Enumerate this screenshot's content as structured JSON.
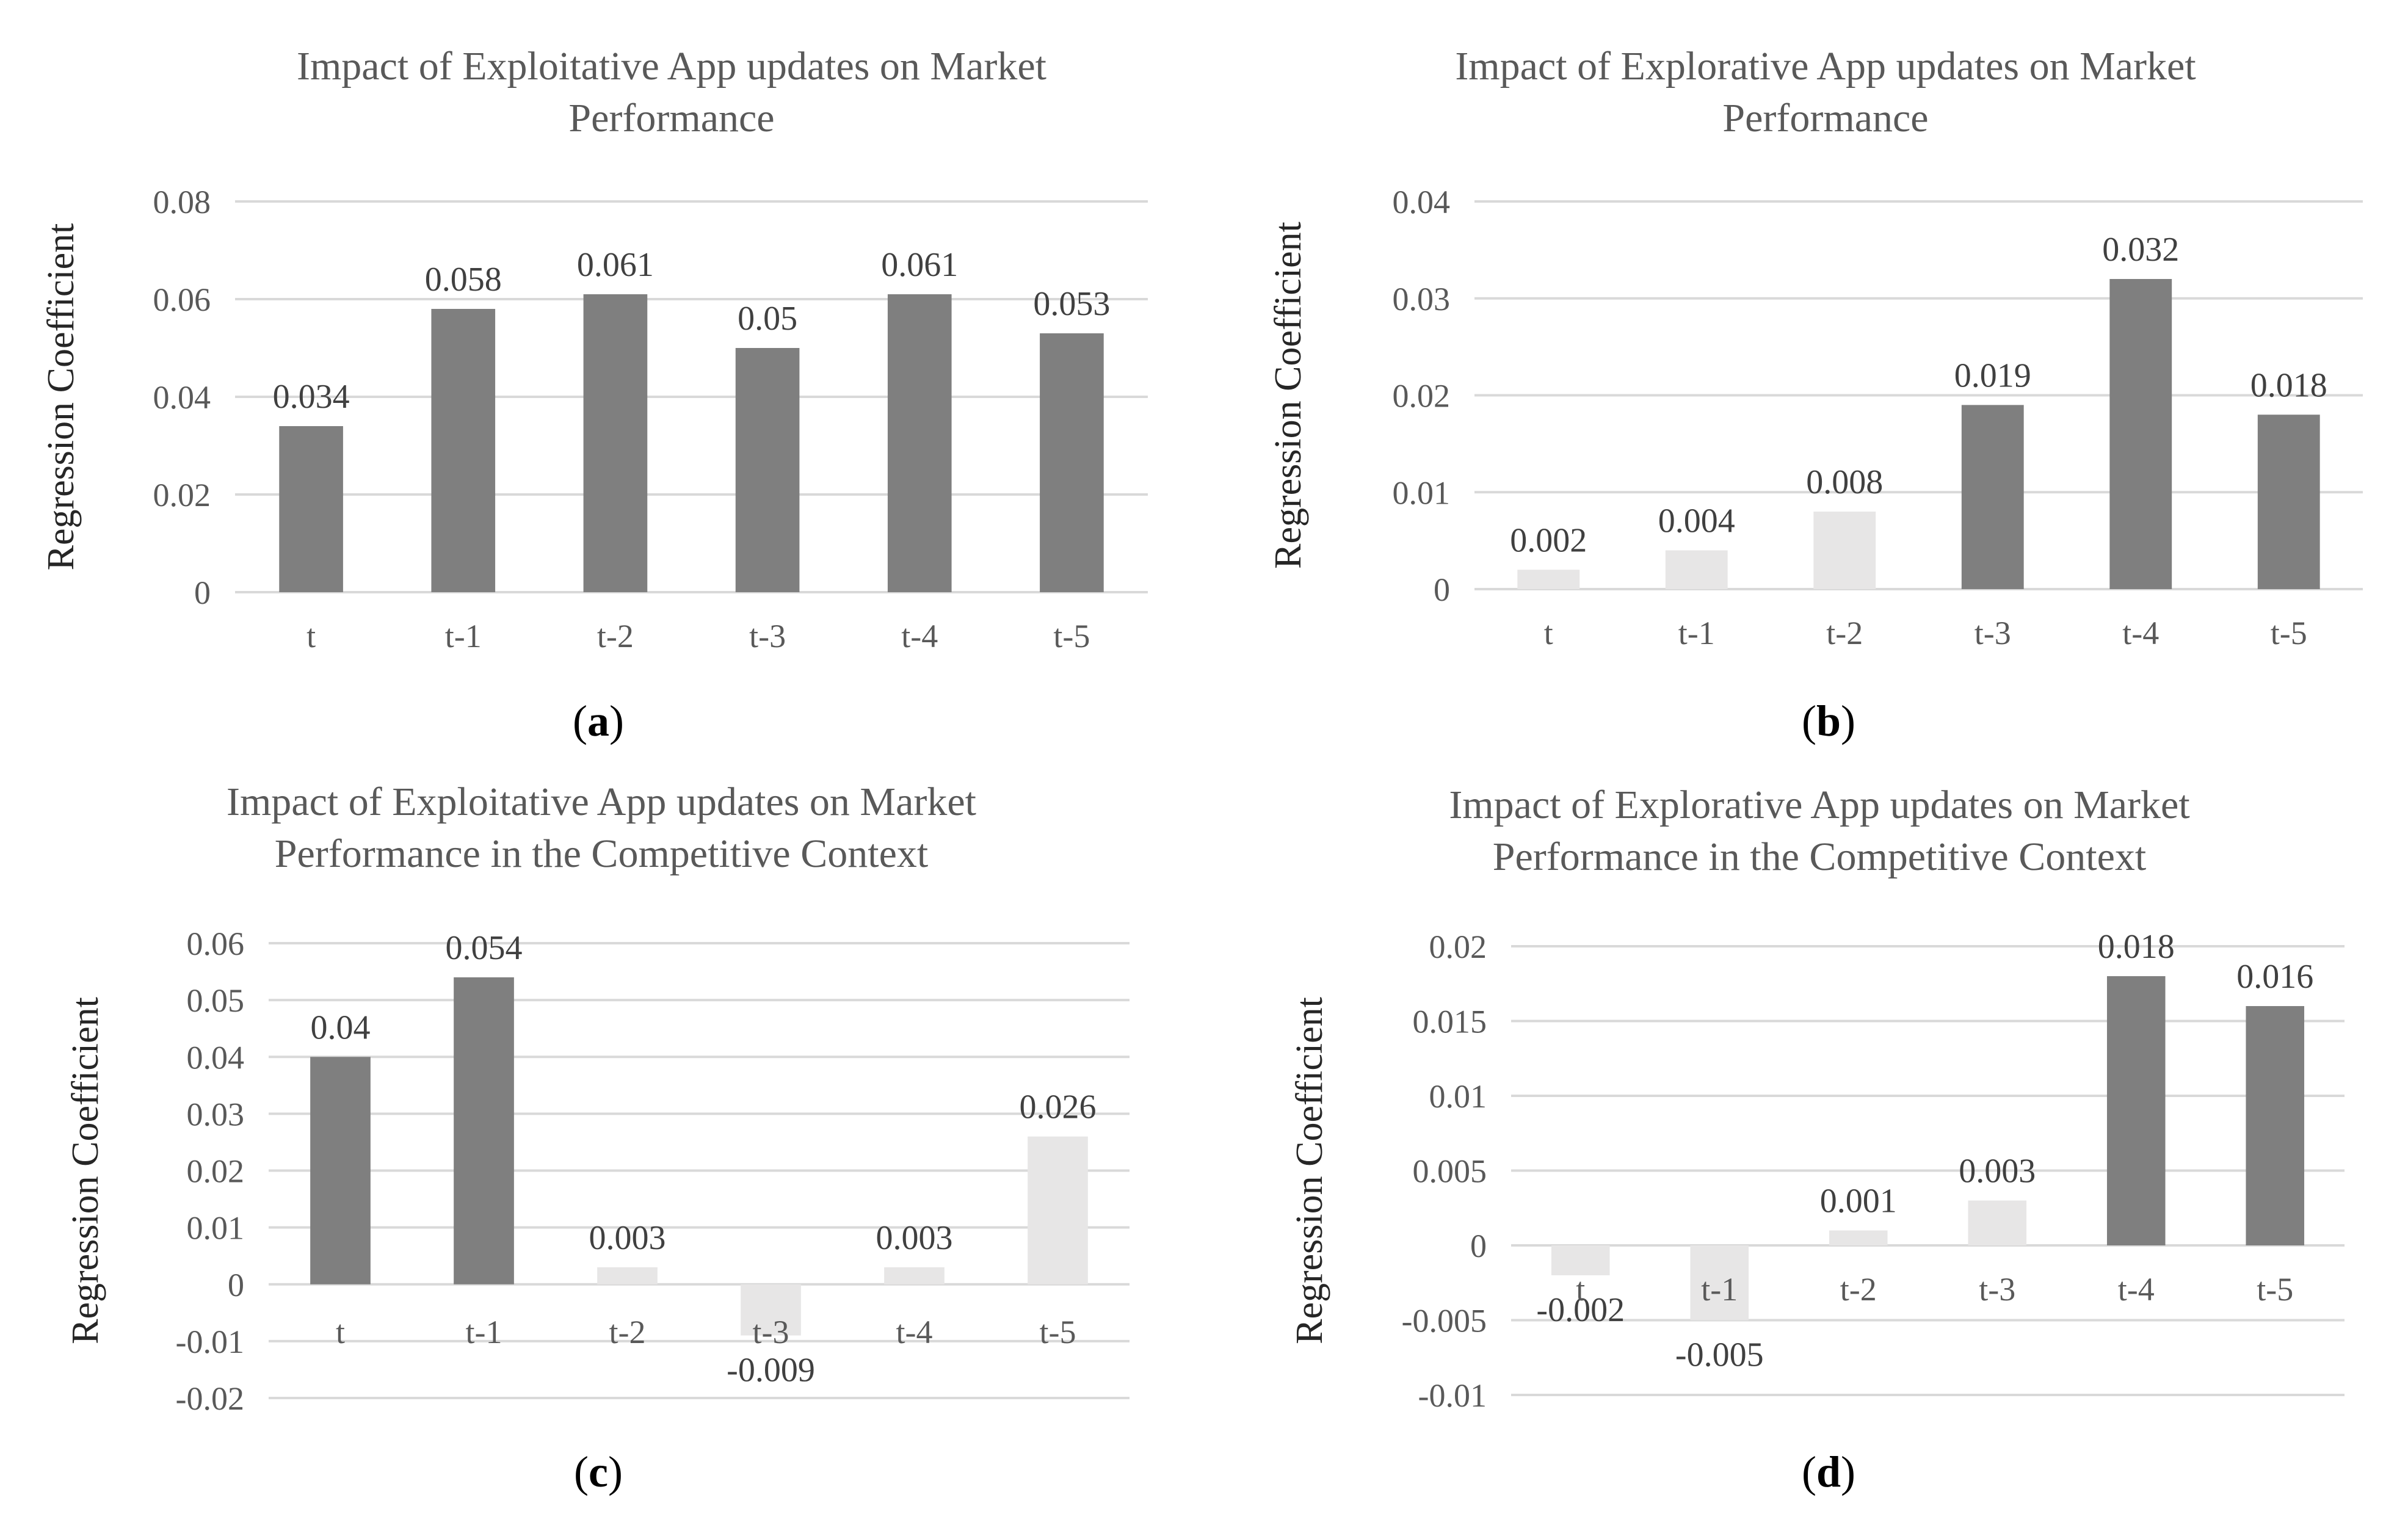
{
  "chart_data": [
    {
      "id": "a",
      "type": "bar",
      "title_lines": [
        "Impact of Exploitative App updates on Market",
        "Performance"
      ],
      "ylabel": "Regression Coefficient",
      "xlabel": "",
      "categories": [
        "t",
        "t-1",
        "t-2",
        "t-3",
        "t-4",
        "t-5"
      ],
      "values": [
        0.034,
        0.058,
        0.061,
        0.05,
        0.061,
        0.053
      ],
      "value_labels": [
        "0.034",
        "0.058",
        "0.061",
        "0.05",
        "0.061",
        "0.053"
      ],
      "significant": [
        true,
        true,
        true,
        true,
        true,
        true
      ],
      "ylim": [
        0,
        0.08
      ],
      "yticks": [
        0,
        0.02,
        0.04,
        0.06,
        0.08
      ],
      "ytick_labels": [
        "0",
        "0.02",
        "0.04",
        "0.06",
        "0.08"
      ],
      "grid": true,
      "caption": "a"
    },
    {
      "id": "b",
      "type": "bar",
      "title_lines": [
        "Impact of Explorative App updates on Market",
        "Performance"
      ],
      "ylabel": "Regression Coefficient",
      "xlabel": "",
      "categories": [
        "t",
        "t-1",
        "t-2",
        "t-3",
        "t-4",
        "t-5"
      ],
      "values": [
        0.002,
        0.004,
        0.008,
        0.019,
        0.032,
        0.018
      ],
      "value_labels": [
        "0.002",
        "0.004",
        "0.008",
        "0.019",
        "0.032",
        "0.018"
      ],
      "significant": [
        false,
        false,
        false,
        true,
        true,
        true
      ],
      "ylim": [
        0,
        0.04
      ],
      "yticks": [
        0,
        0.01,
        0.02,
        0.03,
        0.04
      ],
      "ytick_labels": [
        "0",
        "0.01",
        "0.02",
        "0.03",
        "0.04"
      ],
      "grid": true,
      "caption": "b"
    },
    {
      "id": "c",
      "type": "bar",
      "title_lines": [
        "Impact of Exploitative App updates on Market",
        "Performance in the Competitive Context"
      ],
      "ylabel": "Regression Coefficient",
      "xlabel": "",
      "categories": [
        "t",
        "t-1",
        "t-2",
        "t-3",
        "t-4",
        "t-5"
      ],
      "values": [
        0.04,
        0.054,
        0.003,
        -0.009,
        0.003,
        0.026
      ],
      "value_labels": [
        "0.04",
        "0.054",
        "0.003",
        "-0.009",
        "0.003",
        "0.026"
      ],
      "significant": [
        true,
        true,
        false,
        false,
        false,
        false
      ],
      "ylim": [
        -0.02,
        0.06
      ],
      "yticks": [
        -0.02,
        -0.01,
        0,
        0.01,
        0.02,
        0.03,
        0.04,
        0.05,
        0.06
      ],
      "ytick_labels": [
        "-0.02",
        "-0.01",
        "0",
        "0.01",
        "0.02",
        "0.03",
        "0.04",
        "0.05",
        "0.06"
      ],
      "grid": true,
      "caption": "c"
    },
    {
      "id": "d",
      "type": "bar",
      "title_lines": [
        "Impact of Explorative App updates on Market",
        "Performance in the Competitive Context"
      ],
      "ylabel": "Regression Coefficient",
      "xlabel": "",
      "categories": [
        "t",
        "t-1",
        "t-2",
        "t-3",
        "t-4",
        "t-5"
      ],
      "values": [
        -0.002,
        -0.005,
        0.001,
        0.003,
        0.018,
        0.016
      ],
      "value_labels": [
        "-0.002",
        "-0.005",
        "0.001",
        "0.003",
        "0.018",
        "0.016"
      ],
      "significant": [
        false,
        false,
        false,
        false,
        true,
        true
      ],
      "ylim": [
        -0.01,
        0.02
      ],
      "yticks": [
        -0.01,
        -0.005,
        0,
        0.005,
        0.01,
        0.015,
        0.02
      ],
      "ytick_labels": [
        "-0.01",
        "-0.005",
        "0",
        "0.005",
        "0.01",
        "0.015",
        "0.02"
      ],
      "grid": true,
      "caption": "d"
    }
  ],
  "colors": {
    "significant_bar": "#7f7f7f",
    "nonsignificant_bar": "#e7e6e6",
    "gridline": "#d9d9d9"
  }
}
